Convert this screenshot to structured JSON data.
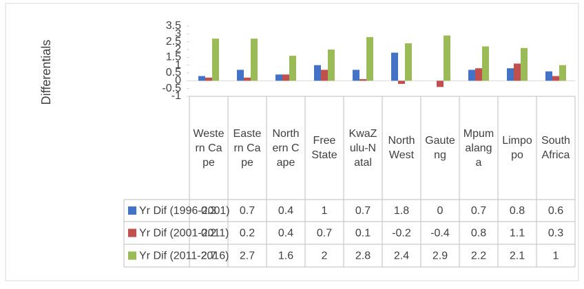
{
  "chart_data": {
    "type": "bar",
    "y_label": "Differentials",
    "categories": [
      "Western Cape",
      "Eastern Cape",
      "Northern Cape",
      "Free State",
      "KwaZulu-Natal",
      "North West",
      "Gauteng",
      "Mpumalanga",
      "Limpopo",
      "South Africa"
    ],
    "series": [
      {
        "name": "Yr Dif (1996-2001)",
        "color": "#4472c4",
        "values": [
          0.3,
          0.7,
          0.4,
          1,
          0.7,
          1.8,
          0,
          0.7,
          0.8,
          0.6
        ]
      },
      {
        "name": "Yr Dif (2001-2011)",
        "color": "#c0504d",
        "values": [
          0.2,
          0.2,
          0.4,
          0.7,
          0.1,
          -0.2,
          -0.4,
          0.8,
          1.1,
          0.3
        ]
      },
      {
        "name": "Yr Dif (2011-2016)",
        "color": "#9bbb59",
        "values": [
          2.7,
          2.7,
          1.6,
          2,
          2.8,
          2.4,
          2.9,
          2.2,
          2.1,
          1
        ]
      }
    ],
    "ylim": [
      -1,
      3.5
    ],
    "yticks": [
      -1,
      -0.5,
      0,
      0.5,
      1,
      1.5,
      2,
      2.5,
      3,
      3.5
    ],
    "grid": false
  }
}
